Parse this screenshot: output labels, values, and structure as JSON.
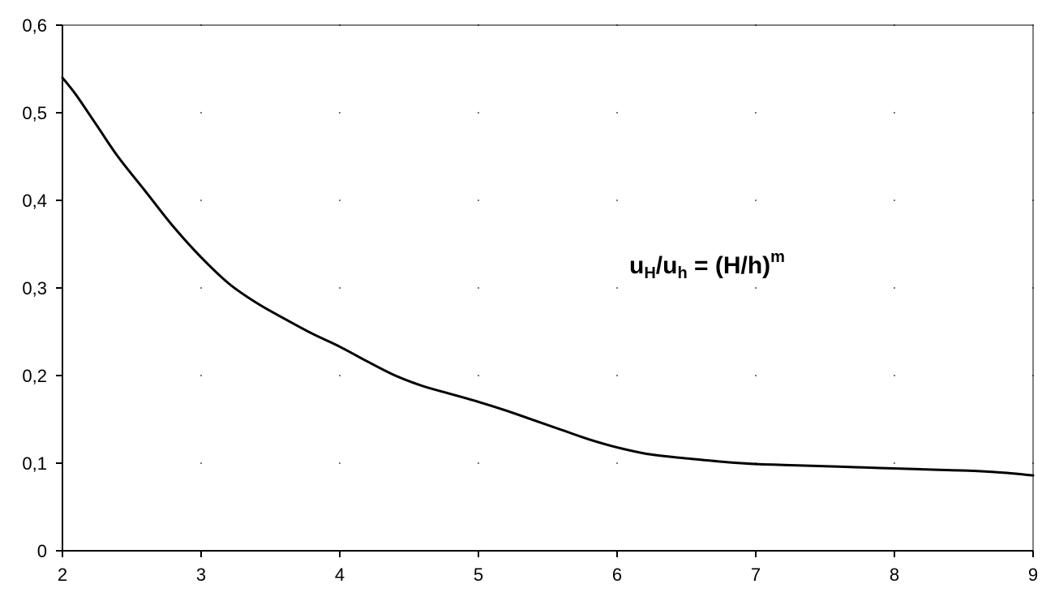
{
  "chart_data": {
    "type": "line",
    "title": "",
    "xlabel": "",
    "ylabel": "",
    "xlim": [
      2,
      9
    ],
    "ylim": [
      0,
      0.6
    ],
    "x_ticks": [
      2,
      3,
      4,
      5,
      6,
      7,
      8,
      9
    ],
    "y_ticks": [
      0,
      0.1,
      0.2,
      0.3,
      0.4,
      0.5,
      0.6
    ],
    "x_tick_labels": [
      "2",
      "3",
      "4",
      "5",
      "6",
      "7",
      "8",
      "9"
    ],
    "y_tick_labels": [
      "0",
      "0,1",
      "0,2",
      "0,3",
      "0,4",
      "0,5",
      "0,6"
    ],
    "grid": "dotted",
    "series": [
      {
        "color": "#000000",
        "x": [
          2.0,
          2.1,
          2.25,
          2.4,
          2.6,
          2.8,
          3.0,
          3.2,
          3.4,
          3.6,
          3.8,
          4.0,
          4.2,
          4.4,
          4.6,
          4.8,
          5.0,
          5.2,
          5.4,
          5.6,
          5.8,
          6.0,
          6.2,
          6.4,
          6.6,
          6.8,
          7.0,
          7.2,
          7.4,
          7.6,
          7.8,
          8.0,
          8.2,
          8.4,
          8.6,
          8.8,
          9.0
        ],
        "y": [
          0.54,
          0.52,
          0.485,
          0.45,
          0.41,
          0.37,
          0.335,
          0.305,
          0.283,
          0.265,
          0.248,
          0.233,
          0.216,
          0.2,
          0.188,
          0.179,
          0.17,
          0.16,
          0.149,
          0.138,
          0.127,
          0.118,
          0.111,
          0.107,
          0.104,
          0.101,
          0.099,
          0.098,
          0.097,
          0.096,
          0.095,
          0.094,
          0.093,
          0.092,
          0.091,
          0.089,
          0.086
        ]
      }
    ],
    "annotation": {
      "u1": "u",
      "H1": "H",
      "slash1": "/u",
      "h1": "h",
      "eq": " = (H/h)",
      "m": "m"
    }
  }
}
